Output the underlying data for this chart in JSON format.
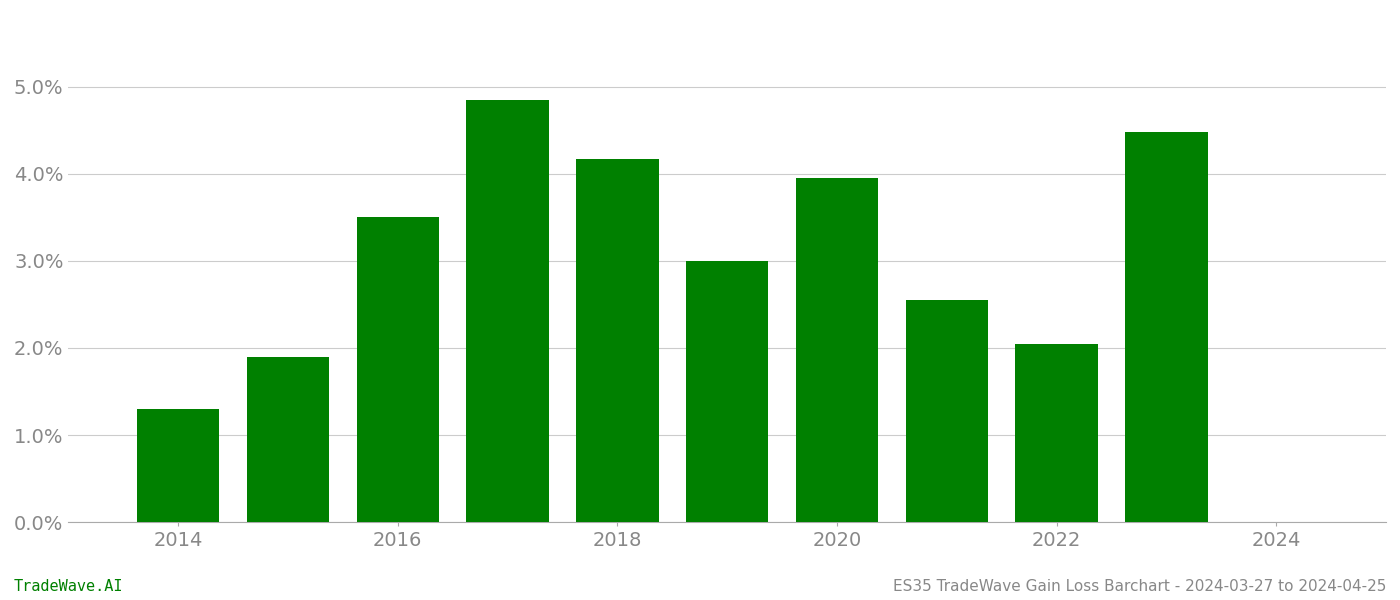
{
  "years": [
    2014,
    2015,
    2016,
    2017,
    2018,
    2019,
    2020,
    2021,
    2022,
    2023,
    2024
  ],
  "values": [
    0.013,
    0.019,
    0.035,
    0.0485,
    0.0417,
    0.03,
    0.0395,
    0.0255,
    0.0205,
    0.0448,
    0.0
  ],
  "bar_color": "#008000",
  "background_color": "#ffffff",
  "ylim": [
    0.0,
    0.057
  ],
  "yticks": [
    0.0,
    0.01,
    0.02,
    0.03,
    0.04,
    0.05
  ],
  "footer_left": "TradeWave.AI",
  "footer_right": "ES35 TradeWave Gain Loss Barchart - 2024-03-27 to 2024-04-25",
  "grid_color": "#cccccc",
  "bar_width": 0.75,
  "xtick_fontsize": 14,
  "ytick_fontsize": 14,
  "footer_fontsize": 11,
  "xticks_show": [
    2014,
    2016,
    2018,
    2020,
    2022,
    2024
  ],
  "tick_color": "#888888",
  "spine_color": "#aaaaaa",
  "footer_left_color": "#008000",
  "footer_right_color": "#888888"
}
